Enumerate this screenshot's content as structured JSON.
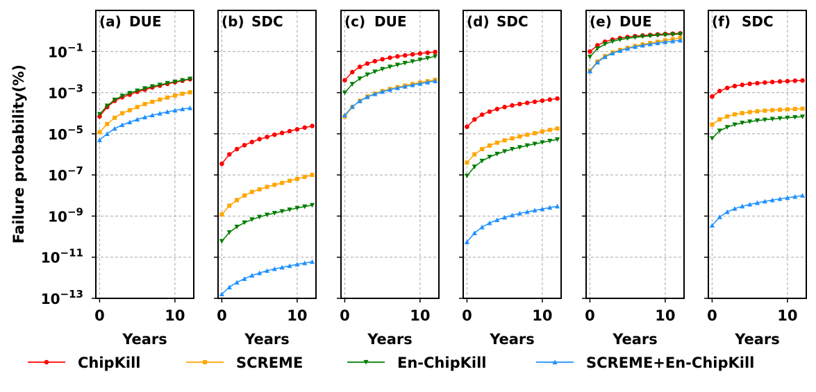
{
  "ylabel": "Failure probability(%)",
  "xlabel": "Years",
  "colors": {
    "ChipKill": "#ff0000",
    "SCREME": "#ffa500",
    "En-ChipKill": "#007d00",
    "SCREME+En-ChipKill": "#1e90ff"
  },
  "legend": [
    "ChipKill",
    "SCREME",
    "En-ChipKill",
    "SCREME+En-ChipKill"
  ],
  "chart_data": {
    "type": "line",
    "y_scale": "log",
    "ylim_exp": [
      -13,
      1
    ],
    "y_ticks": [
      "10^-1",
      "10^-3",
      "10^-5",
      "10^-7",
      "10^-9",
      "10^-11",
      "10^-13"
    ],
    "xlim": [
      -0.5,
      12.5
    ],
    "x_ticks": [
      "0",
      "10"
    ],
    "x": [
      0,
      1,
      2,
      3,
      4,
      5,
      6,
      7,
      8,
      9,
      10,
      11,
      12
    ],
    "grid": true,
    "legend_position": "bottom",
    "panels": [
      {
        "label": "(a)",
        "title": "DUE",
        "series": [
          {
            "name": "ChipKill",
            "marker": "circle",
            "values": [
              7e-05,
              0.0002,
              0.0004,
              0.0006,
              0.0008,
              0.0011,
              0.0014,
              0.0018,
              0.0022,
              0.0027,
              0.0032,
              0.0038,
              0.0045
            ]
          },
          {
            "name": "SCREME",
            "marker": "square",
            "values": [
              1.2e-05,
              3e-05,
              6e-05,
              0.0001,
              0.00014,
              0.0002,
              0.00028,
              0.00036,
              0.00046,
              0.00058,
              0.00072,
              0.00088,
              0.00105
            ]
          },
          {
            "name": "En-ChipKill",
            "marker": "triangle-down",
            "values": [
              9e-05,
              0.00023,
              0.00045,
              0.0007,
              0.00095,
              0.00125,
              0.0016,
              0.002,
              0.0024,
              0.0029,
              0.0034,
              0.004,
              0.0047
            ]
          },
          {
            "name": "SCREME+En-ChipKill",
            "marker": "triangle-up",
            "values": [
              5e-06,
              1e-05,
              1.8e-05,
              2.7e-05,
              3.7e-05,
              5e-05,
              6.4e-05,
              8e-05,
              9.8e-05,
              0.000117,
              0.000138,
              0.00016,
              0.00018
            ]
          }
        ]
      },
      {
        "label": "(b)",
        "title": "SDC",
        "series": [
          {
            "name": "ChipKill",
            "marker": "circle",
            "values": [
              3.5e-07,
              1e-06,
              1.8e-06,
              2.8e-06,
              4e-06,
              5.5e-06,
              7e-06,
              9e-06,
              1.1e-05,
              1.35e-05,
              1.65e-05,
              2e-05,
              2.4e-05
            ]
          },
          {
            "name": "SCREME",
            "marker": "square",
            "values": [
              1.2e-09,
              3.2e-09,
              6e-09,
              1e-08,
              1.5e-08,
              2e-08,
              2.6e-08,
              3.3e-08,
              4.1e-08,
              5.2e-08,
              6.4e-08,
              8e-08,
              1e-07
            ]
          },
          {
            "name": "En-ChipKill",
            "marker": "triangle-down",
            "values": [
              6e-11,
              1.6e-10,
              3e-10,
              4.8e-10,
              6.8e-10,
              9e-10,
              1.15e-09,
              1.4e-09,
              1.7e-09,
              2.05e-09,
              2.45e-09,
              2.9e-09,
              3.4e-09
            ]
          },
          {
            "name": "SCREME+En-ChipKill",
            "marker": "triangle-up",
            "values": [
              1.6e-13,
              3.5e-13,
              6e-13,
              9e-13,
              1.3e-12,
              1.7e-12,
              2.2e-12,
              2.7e-12,
              3.2e-12,
              3.8e-12,
              4.5e-12,
              5.2e-12,
              6e-12
            ]
          }
        ]
      },
      {
        "label": "(c)",
        "title": "DUE",
        "series": [
          {
            "name": "ChipKill",
            "marker": "circle",
            "values": [
              0.004,
              0.01,
              0.018,
              0.026,
              0.034,
              0.042,
              0.05,
              0.058,
              0.065,
              0.073,
              0.08,
              0.088,
              0.095
            ]
          },
          {
            "name": "SCREME",
            "marker": "square",
            "values": [
              7e-05,
              0.0002,
              0.0004,
              0.00065,
              0.0009,
              0.0012,
              0.0015,
              0.00185,
              0.0022,
              0.0026,
              0.0031,
              0.0036,
              0.0042
            ]
          },
          {
            "name": "En-ChipKill",
            "marker": "triangle-down",
            "values": [
              0.001,
              0.0026,
              0.0048,
              0.0075,
              0.0105,
              0.014,
              0.018,
              0.0225,
              0.0275,
              0.033,
              0.04,
              0.048,
              0.058
            ]
          },
          {
            "name": "SCREME+En-ChipKill",
            "marker": "triangle-up",
            "values": [
              8e-05,
              0.00021,
              0.00039,
              0.00062,
              0.00086,
              0.00112,
              0.0014,
              0.0017,
              0.002,
              0.00235,
              0.00275,
              0.0032,
              0.0037
            ]
          }
        ]
      },
      {
        "label": "(d)",
        "title": "SDC",
        "series": [
          {
            "name": "ChipKill",
            "marker": "circle",
            "values": [
              2.2e-05,
              5e-05,
              8.5e-05,
              0.00012,
              0.00016,
              0.0002,
              0.00024,
              0.00028,
              0.00032,
              0.00036,
              0.00041,
              0.00046,
              0.00052
            ]
          },
          {
            "name": "SCREME",
            "marker": "square",
            "values": [
              4e-07,
              1e-06,
              1.8e-06,
              2.7e-06,
              3.7e-06,
              4.8e-06,
              6e-06,
              7.4e-06,
              9e-06,
              1.07e-05,
              1.3e-05,
              1.55e-05,
              1.8e-05
            ]
          },
          {
            "name": "En-ChipKill",
            "marker": "triangle-down",
            "values": [
              9e-08,
              2.5e-07,
              4.8e-07,
              7.5e-07,
              1.05e-06,
              1.4e-06,
              1.8e-06,
              2.2e-06,
              2.7e-06,
              3.2e-06,
              3.8e-06,
              4.5e-06,
              5.3e-06
            ]
          },
          {
            "name": "SCREME+En-ChipKill",
            "marker": "triangle-up",
            "values": [
              5.5e-11,
              1.5e-10,
              2.9e-10,
              4.6e-10,
              6.5e-10,
              8.6e-10,
              1.1e-09,
              1.35e-09,
              1.6e-09,
              1.9e-09,
              2.2e-09,
              2.6e-09,
              3e-09
            ]
          }
        ]
      },
      {
        "label": "(e)",
        "title": "DUE",
        "series": [
          {
            "name": "ChipKill",
            "marker": "circle",
            "values": [
              0.1,
              0.2,
              0.3,
              0.38,
              0.45,
              0.51,
              0.56,
              0.6,
              0.64,
              0.68,
              0.71,
              0.74,
              0.77
            ]
          },
          {
            "name": "SCREME",
            "marker": "square",
            "values": [
              0.012,
              0.033,
              0.06,
              0.09,
              0.12,
              0.15,
              0.185,
              0.22,
              0.26,
              0.3,
              0.35,
              0.4,
              0.45
            ]
          },
          {
            "name": "En-ChipKill",
            "marker": "triangle-down",
            "values": [
              0.055,
              0.14,
              0.23,
              0.31,
              0.38,
              0.44,
              0.49,
              0.54,
              0.58,
              0.62,
              0.65,
              0.68,
              0.71
            ]
          },
          {
            "name": "SCREME+En-ChipKill",
            "marker": "triangle-up",
            "values": [
              0.011,
              0.03,
              0.055,
              0.083,
              0.11,
              0.14,
              0.17,
              0.2,
              0.23,
              0.26,
              0.29,
              0.32,
              0.35
            ]
          }
        ]
      },
      {
        "label": "(f)",
        "title": "SDC",
        "series": [
          {
            "name": "ChipKill",
            "marker": "circle",
            "values": [
              0.00065,
              0.0012,
              0.0017,
              0.0021,
              0.0024,
              0.0027,
              0.0029,
              0.0031,
              0.0033,
              0.0035,
              0.0036,
              0.0038,
              0.0039
            ]
          },
          {
            "name": "SCREME",
            "marker": "square",
            "values": [
              2.8e-05,
              5e-05,
              7e-05,
              8.8e-05,
              0.000102,
              0.000114,
              0.000124,
              0.000133,
              0.000141,
              0.000148,
              0.000155,
              0.000161,
              0.000167
            ]
          },
          {
            "name": "En-ChipKill",
            "marker": "triangle-down",
            "values": [
              6e-06,
              1.4e-05,
              2.1e-05,
              2.8e-05,
              3.4e-05,
              3.9e-05,
              4.4e-05,
              4.8e-05,
              5.2e-05,
              5.6e-05,
              6e-05,
              6.4e-05,
              6.8e-05
            ]
          },
          {
            "name": "SCREME+En-ChipKill",
            "marker": "triangle-up",
            "values": [
              3.5e-10,
              9e-10,
              1.6e-09,
              2.3e-09,
              3e-09,
              3.7e-09,
              4.4e-09,
              5.2e-09,
              6e-09,
              6.9e-09,
              7.8e-09,
              8.8e-09,
              1e-08
            ]
          }
        ]
      }
    ]
  }
}
